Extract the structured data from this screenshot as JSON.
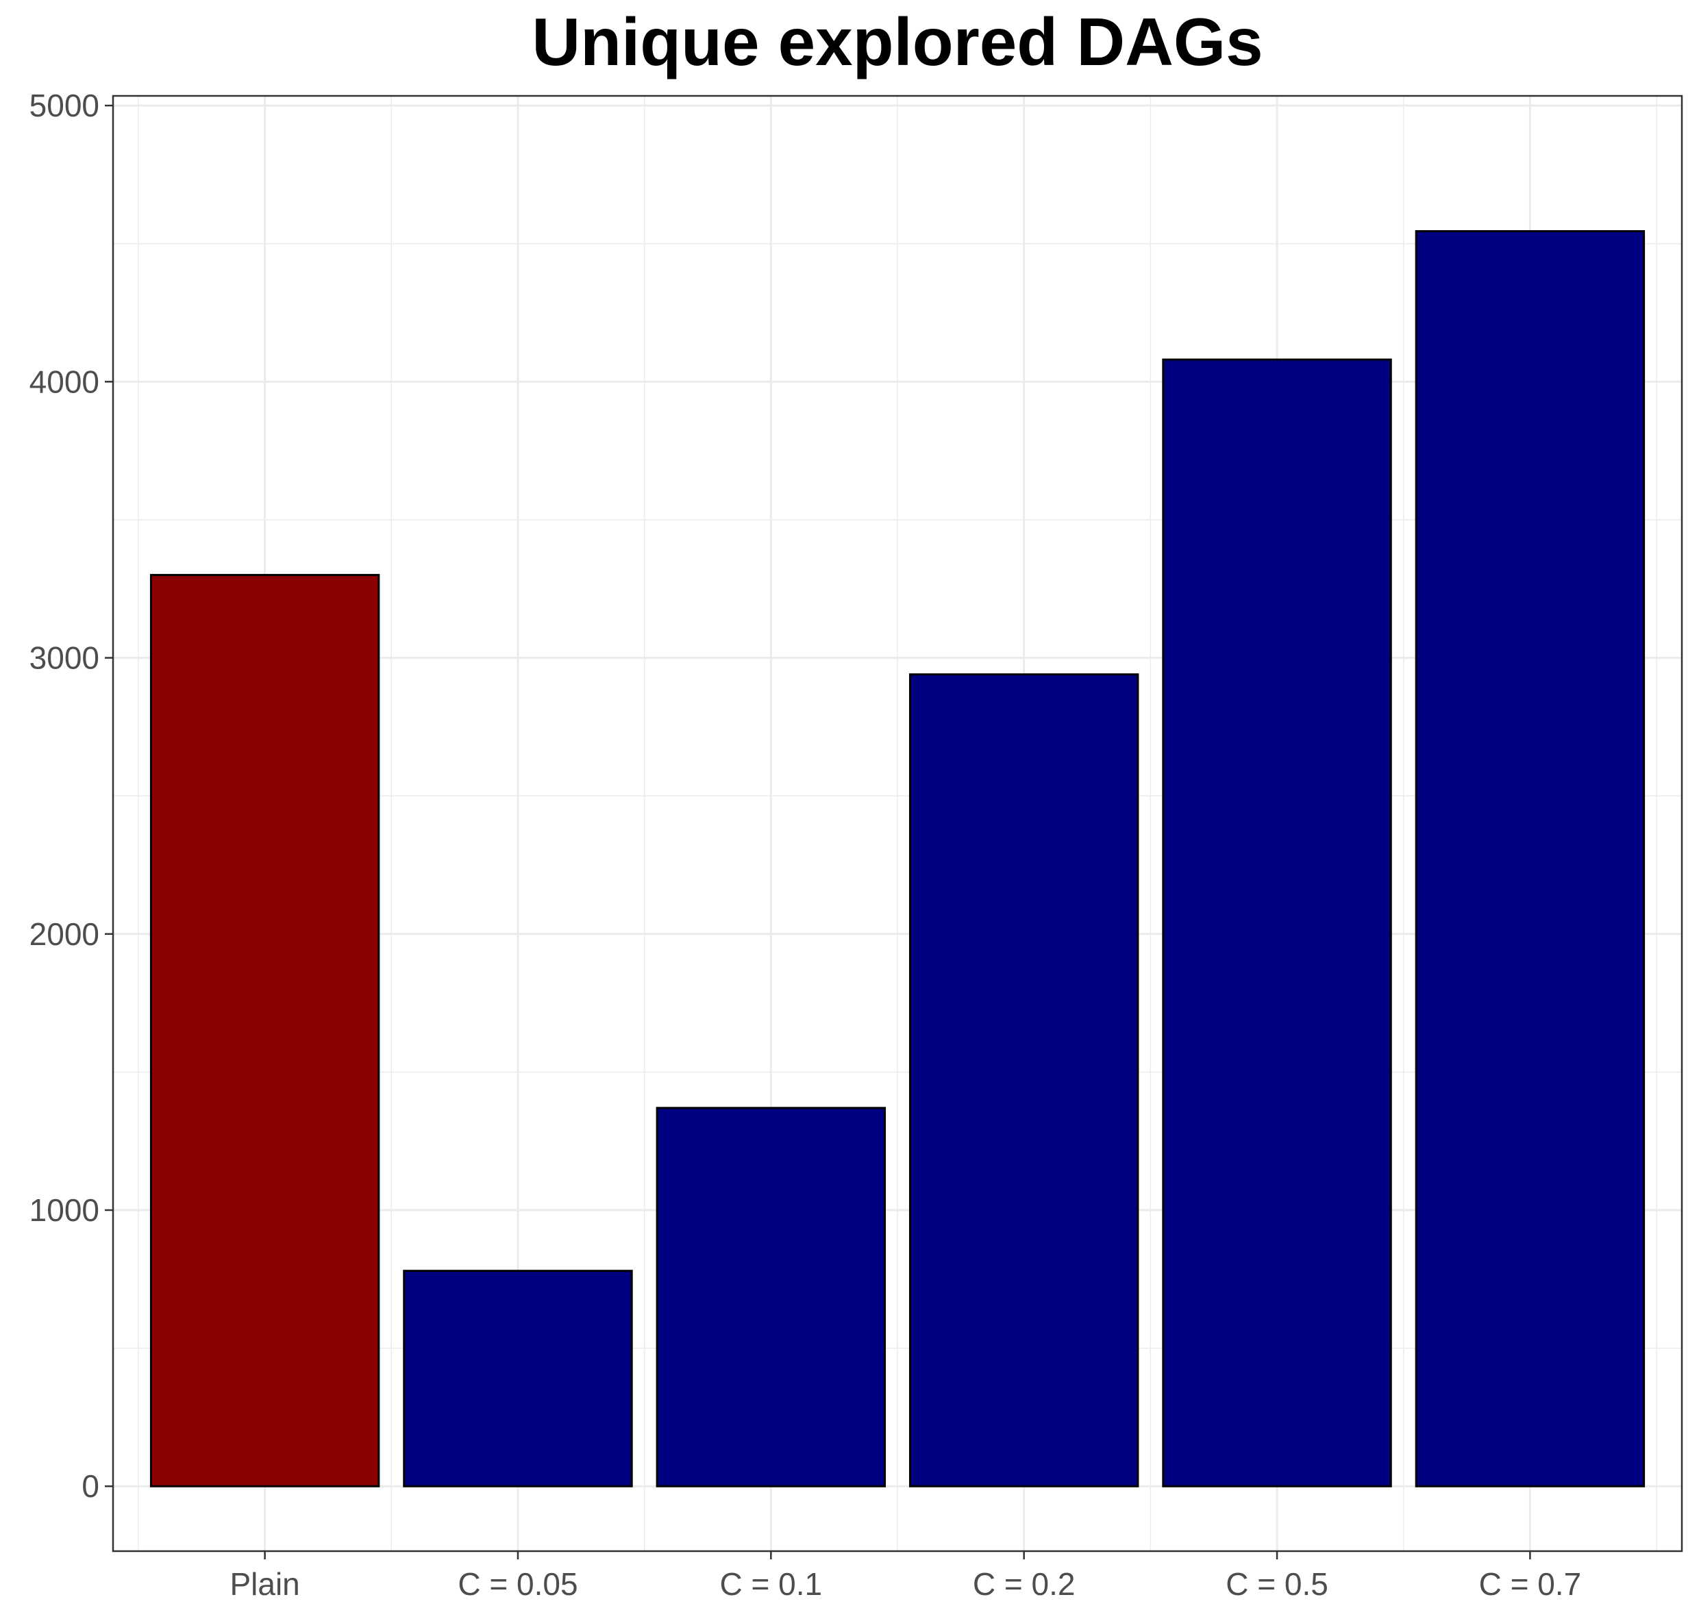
{
  "chart_data": {
    "type": "bar",
    "title": "Unique explored DAGs",
    "xlabel": "",
    "ylabel": "",
    "categories": [
      "Plain",
      "C = 0.05",
      "C = 0.1",
      "C = 0.2",
      "C = 0.5",
      "C = 0.7"
    ],
    "values": [
      3300,
      780,
      1370,
      2940,
      4080,
      4545
    ],
    "bar_colors": [
      "#8B0000",
      "#000080",
      "#000080",
      "#000080",
      "#000080",
      "#000080"
    ],
    "bar_outline_color": "#000000",
    "y_ticks": [
      0,
      1000,
      2000,
      3000,
      4000,
      5000
    ],
    "y_tick_labels": [
      "0",
      "1000",
      "2000",
      "3000",
      "4000",
      "5000"
    ],
    "ylim": [
      -235,
      5035
    ],
    "grid": true,
    "legend": "none"
  }
}
